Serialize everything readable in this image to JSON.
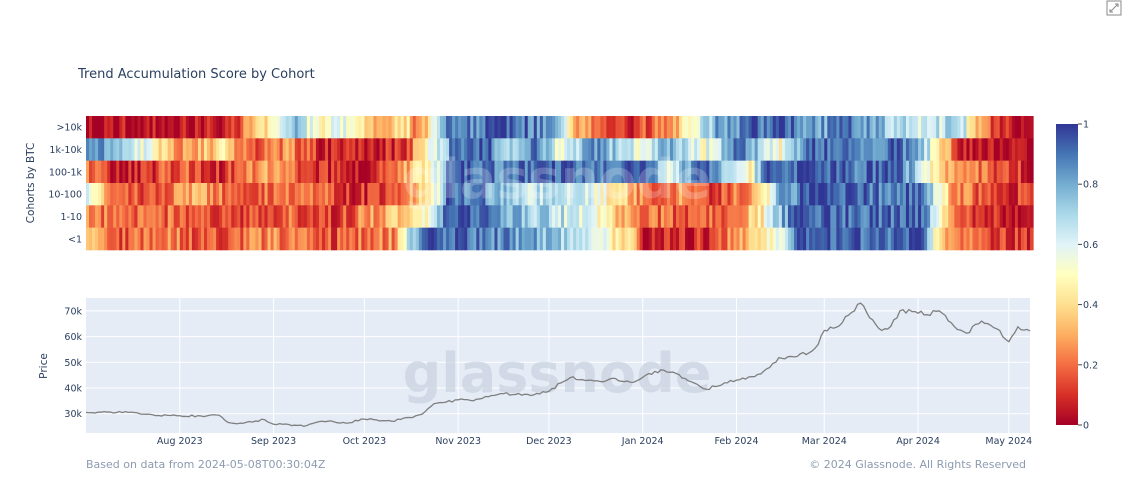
{
  "ui": {
    "expand_icon": "expand-icon",
    "watermark": "glassnode",
    "footer_left": "Based on data from 2024-05-08T00:30:04Z",
    "footer_right": "© 2024 Glassnode. All Rights Reserved"
  },
  "colors": {
    "plot_bg": "#e5ecf6",
    "line": "#7f7f7f",
    "colorscale": [
      "#a50026",
      "#d73027",
      "#f46d43",
      "#fdae61",
      "#fee090",
      "#ffffbf",
      "#e0f3f8",
      "#abd9e9",
      "#74add1",
      "#4575b4",
      "#313695"
    ]
  },
  "chart_data": [
    {
      "type": "heatmap",
      "title": "Trend Accumulation Score by Cohort",
      "ylabel": "Cohorts by BTC",
      "x_range": [
        "2023-07-01",
        "2024-05-08"
      ],
      "cohorts": [
        ">10k",
        "1k-10k",
        "100-1k",
        "10-100",
        "1-10",
        "<1"
      ],
      "colorbar": {
        "min": 0,
        "max": 1,
        "ticks": [
          "0",
          "0.2",
          "0.4",
          "0.6",
          "0.8",
          "1"
        ]
      },
      "segments": {
        ">10k": [
          [
            "2023-07-01",
            0.05
          ],
          [
            "2023-07-20",
            0.02
          ],
          [
            "2023-08-10",
            0.05
          ],
          [
            "2023-08-20",
            0.15
          ],
          [
            "2023-08-25",
            0.3
          ],
          [
            "2023-09-02",
            0.5
          ],
          [
            "2023-09-08",
            0.75
          ],
          [
            "2023-09-15",
            0.45
          ],
          [
            "2023-09-22",
            0.6
          ],
          [
            "2023-10-01",
            0.4
          ],
          [
            "2023-10-08",
            0.3
          ],
          [
            "2023-10-15",
            0.4
          ],
          [
            "2023-10-18",
            0.2
          ],
          [
            "2023-10-25",
            0.65
          ],
          [
            "2023-10-28",
            0.95
          ],
          [
            "2023-11-05",
            0.85
          ],
          [
            "2023-11-15",
            0.95
          ],
          [
            "2023-11-30",
            0.85
          ],
          [
            "2023-12-05",
            0.6
          ],
          [
            "2023-12-10",
            0.3
          ],
          [
            "2023-12-18",
            0.2
          ],
          [
            "2023-12-25",
            0.1
          ],
          [
            "2024-01-05",
            0.2
          ],
          [
            "2024-01-12",
            0.35
          ],
          [
            "2024-01-20",
            0.65
          ],
          [
            "2024-01-25",
            0.8
          ],
          [
            "2024-02-05",
            0.9
          ],
          [
            "2024-02-15",
            0.95
          ],
          [
            "2024-03-01",
            0.8
          ],
          [
            "2024-03-08",
            0.95
          ],
          [
            "2024-03-20",
            0.75
          ],
          [
            "2024-04-01",
            0.6
          ],
          [
            "2024-04-15",
            0.7
          ],
          [
            "2024-04-20",
            0.3
          ],
          [
            "2024-04-25",
            0.15
          ],
          [
            "2024-05-01",
            0.05
          ],
          [
            "2024-05-08",
            0.05
          ]
        ],
        "1k-10k": [
          [
            "2023-07-01",
            0.9
          ],
          [
            "2023-07-10",
            0.75
          ],
          [
            "2023-07-20",
            0.55
          ],
          [
            "2023-08-01",
            0.25
          ],
          [
            "2023-08-15",
            0.4
          ],
          [
            "2023-08-25",
            0.15
          ],
          [
            "2023-09-05",
            0.25
          ],
          [
            "2023-09-15",
            0.1
          ],
          [
            "2023-10-01",
            0.05
          ],
          [
            "2023-10-15",
            0.15
          ],
          [
            "2023-10-25",
            0.65
          ],
          [
            "2023-10-30",
            0.9
          ],
          [
            "2023-11-10",
            0.95
          ],
          [
            "2023-11-20",
            0.6
          ],
          [
            "2023-11-25",
            0.9
          ],
          [
            "2023-12-05",
            0.5
          ],
          [
            "2023-12-15",
            0.85
          ],
          [
            "2024-01-01",
            0.55
          ],
          [
            "2024-01-10",
            0.85
          ],
          [
            "2024-01-20",
            0.5
          ],
          [
            "2024-02-01",
            0.9
          ],
          [
            "2024-02-15",
            0.5
          ],
          [
            "2024-02-25",
            0.95
          ],
          [
            "2024-03-15",
            0.85
          ],
          [
            "2024-03-25",
            0.95
          ],
          [
            "2024-04-05",
            0.6
          ],
          [
            "2024-04-10",
            0.3
          ],
          [
            "2024-04-15",
            0.05
          ],
          [
            "2024-05-08",
            0.02
          ]
        ],
        "100-1k": [
          [
            "2023-07-01",
            0.2
          ],
          [
            "2023-07-15",
            0.05
          ],
          [
            "2023-08-01",
            0.2
          ],
          [
            "2023-08-15",
            0.1
          ],
          [
            "2023-09-01",
            0.3
          ],
          [
            "2023-09-15",
            0.1
          ],
          [
            "2023-10-01",
            0.05
          ],
          [
            "2023-10-15",
            0.3
          ],
          [
            "2023-10-25",
            0.6
          ],
          [
            "2023-10-29",
            0.95
          ],
          [
            "2023-11-15",
            0.85
          ],
          [
            "2023-12-01",
            0.95
          ],
          [
            "2024-01-01",
            0.9
          ],
          [
            "2024-01-10",
            0.6
          ],
          [
            "2024-01-20",
            0.95
          ],
          [
            "2024-02-05",
            0.5
          ],
          [
            "2024-02-10",
            0.9
          ],
          [
            "2024-02-25",
            0.95
          ],
          [
            "2024-03-10",
            0.9
          ],
          [
            "2024-03-25",
            0.95
          ],
          [
            "2024-04-05",
            0.5
          ],
          [
            "2024-04-10",
            0.3
          ],
          [
            "2024-04-20",
            0.2
          ],
          [
            "2024-05-01",
            0.1
          ],
          [
            "2024-05-08",
            0.1
          ]
        ],
        "10-100": [
          [
            "2023-07-01",
            0.6
          ],
          [
            "2023-07-08",
            0.2
          ],
          [
            "2023-07-20",
            0.15
          ],
          [
            "2023-08-05",
            0.3
          ],
          [
            "2023-08-20",
            0.15
          ],
          [
            "2023-09-05",
            0.25
          ],
          [
            "2023-09-20",
            0.15
          ],
          [
            "2023-10-01",
            0.1
          ],
          [
            "2023-10-15",
            0.25
          ],
          [
            "2023-10-25",
            0.6
          ],
          [
            "2023-10-28",
            0.95
          ],
          [
            "2023-11-10",
            0.85
          ],
          [
            "2023-11-20",
            0.65
          ],
          [
            "2023-12-01",
            0.7
          ],
          [
            "2023-12-15",
            0.6
          ],
          [
            "2023-12-25",
            0.35
          ],
          [
            "2024-01-05",
            0.15
          ],
          [
            "2024-01-15",
            0.3
          ],
          [
            "2024-01-25",
            0.1
          ],
          [
            "2024-02-10",
            0.4
          ],
          [
            "2024-02-15",
            0.8
          ],
          [
            "2024-02-25",
            0.95
          ],
          [
            "2024-03-20",
            0.9
          ],
          [
            "2024-04-01",
            0.95
          ],
          [
            "2024-04-08",
            0.5
          ],
          [
            "2024-04-12",
            0.3
          ],
          [
            "2024-04-20",
            0.15
          ],
          [
            "2024-05-08",
            0.1
          ]
        ],
        "1-10": [
          [
            "2023-07-01",
            0.3
          ],
          [
            "2023-07-10",
            0.15
          ],
          [
            "2023-08-01",
            0.2
          ],
          [
            "2023-08-20",
            0.1
          ],
          [
            "2023-09-05",
            0.2
          ],
          [
            "2023-09-20",
            0.1
          ],
          [
            "2023-10-05",
            0.3
          ],
          [
            "2023-10-20",
            0.45
          ],
          [
            "2023-10-26",
            0.85
          ],
          [
            "2023-11-05",
            0.95
          ],
          [
            "2023-11-15",
            0.8
          ],
          [
            "2023-12-01",
            0.7
          ],
          [
            "2023-12-10",
            0.6
          ],
          [
            "2023-12-20",
            0.45
          ],
          [
            "2023-12-25",
            0.3
          ],
          [
            "2024-01-05",
            0.2
          ],
          [
            "2024-01-20",
            0.15
          ],
          [
            "2024-02-01",
            0.25
          ],
          [
            "2024-02-08",
            0.4
          ],
          [
            "2024-02-15",
            0.75
          ],
          [
            "2024-02-20",
            0.95
          ],
          [
            "2024-03-15",
            0.9
          ],
          [
            "2024-04-01",
            0.95
          ],
          [
            "2024-04-08",
            0.5
          ],
          [
            "2024-04-12",
            0.3
          ],
          [
            "2024-04-20",
            0.1
          ],
          [
            "2024-05-01",
            0.05
          ],
          [
            "2024-05-08",
            0.1
          ]
        ],
        "<1": [
          [
            "2023-07-01",
            0.35
          ],
          [
            "2023-07-10",
            0.15
          ],
          [
            "2023-07-25",
            0.25
          ],
          [
            "2023-08-10",
            0.15
          ],
          [
            "2023-09-01",
            0.25
          ],
          [
            "2023-09-20",
            0.15
          ],
          [
            "2023-10-10",
            0.25
          ],
          [
            "2023-10-15",
            0.7
          ],
          [
            "2023-10-22",
            0.95
          ],
          [
            "2023-11-15",
            0.85
          ],
          [
            "2023-12-01",
            0.75
          ],
          [
            "2023-12-10",
            0.65
          ],
          [
            "2023-12-20",
            0.5
          ],
          [
            "2023-12-28",
            0.35
          ],
          [
            "2024-01-01",
            0.05
          ],
          [
            "2024-01-20",
            0.1
          ],
          [
            "2024-02-01",
            0.25
          ],
          [
            "2024-02-10",
            0.45
          ],
          [
            "2024-02-15",
            0.6
          ],
          [
            "2024-02-20",
            0.95
          ],
          [
            "2024-03-20",
            0.9
          ],
          [
            "2024-04-01",
            0.95
          ],
          [
            "2024-04-05",
            0.6
          ],
          [
            "2024-04-10",
            0.3
          ],
          [
            "2024-04-20",
            0.15
          ],
          [
            "2024-05-08",
            0.1
          ]
        ]
      }
    },
    {
      "type": "line",
      "ylabel": "Price",
      "x_ticks": [
        "Aug 2023",
        "Sep 2023",
        "Oct 2023",
        "Nov 2023",
        "Dec 2023",
        "Jan 2024",
        "Feb 2024",
        "Mar 2024",
        "Apr 2024",
        "May 2024"
      ],
      "x_tick_dates": [
        "2023-08-01",
        "2023-09-01",
        "2023-10-01",
        "2023-11-01",
        "2023-12-01",
        "2024-01-01",
        "2024-02-01",
        "2024-03-01",
        "2024-04-01",
        "2024-05-01"
      ],
      "y_ticks": [
        "30k",
        "40k",
        "50k",
        "60k",
        "70k"
      ],
      "y_tick_values": [
        30000,
        40000,
        50000,
        60000,
        70000
      ],
      "ylim": [
        22500,
        75000
      ],
      "series": [
        {
          "x": [
            "2023-07-01",
            "2023-07-05",
            "2023-07-10",
            "2023-07-14",
            "2023-07-20",
            "2023-07-25",
            "2023-08-01",
            "2023-08-08",
            "2023-08-14",
            "2023-08-17",
            "2023-08-20",
            "2023-08-29",
            "2023-09-01",
            "2023-09-06",
            "2023-09-11",
            "2023-09-15",
            "2023-09-20",
            "2023-09-25",
            "2023-10-01",
            "2023-10-05",
            "2023-10-10",
            "2023-10-16",
            "2023-10-20",
            "2023-10-24",
            "2023-10-28",
            "2023-11-01",
            "2023-11-06",
            "2023-11-10",
            "2023-11-15",
            "2023-11-20",
            "2023-11-26",
            "2023-12-01",
            "2023-12-05",
            "2023-12-08",
            "2023-12-14",
            "2023-12-18",
            "2023-12-22",
            "2023-12-28",
            "2024-01-02",
            "2024-01-08",
            "2024-01-11",
            "2024-01-16",
            "2024-01-22",
            "2024-01-28",
            "2024-02-02",
            "2024-02-08",
            "2024-02-12",
            "2024-02-15",
            "2024-02-20",
            "2024-02-26",
            "2024-02-28",
            "2024-03-01",
            "2024-03-05",
            "2024-03-09",
            "2024-03-13",
            "2024-03-16",
            "2024-03-20",
            "2024-03-23",
            "2024-03-26",
            "2024-03-30",
            "2024-04-04",
            "2024-04-08",
            "2024-04-13",
            "2024-04-17",
            "2024-04-22",
            "2024-04-27",
            "2024-05-01",
            "2024-05-04",
            "2024-05-08"
          ],
          "y": [
            30500,
            30600,
            30300,
            30800,
            29800,
            29300,
            29200,
            29100,
            29400,
            26600,
            26100,
            27700,
            25900,
            25800,
            25100,
            26600,
            27200,
            26300,
            27900,
            27600,
            27100,
            28500,
            29800,
            33900,
            34500,
            35400,
            35000,
            36700,
            37800,
            37500,
            37300,
            38700,
            42000,
            44000,
            43000,
            42500,
            43800,
            42200,
            45000,
            46900,
            46200,
            42800,
            39500,
            42000,
            43200,
            45300,
            48000,
            51800,
            52100,
            54400,
            57000,
            62400,
            63600,
            68300,
            73000,
            67300,
            62400,
            64000,
            70000,
            69700,
            68500,
            70000,
            63900,
            61300,
            66000,
            63000,
            58000,
            63800,
            62200
          ]
        }
      ]
    }
  ]
}
